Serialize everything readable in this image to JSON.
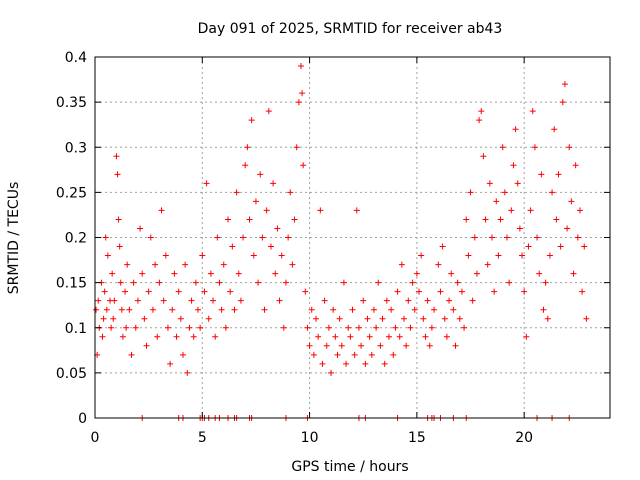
{
  "chart_data": {
    "type": "scatter",
    "title": "Day 091 of 2025, SRMTID for receiver ab43",
    "xlabel": "GPS time / hours",
    "ylabel": "SRMTID / TECUs",
    "xlim": [
      0,
      24
    ],
    "ylim": [
      0,
      0.4
    ],
    "xticks": [
      0,
      5,
      10,
      15,
      20
    ],
    "xtick_labels": [
      "0",
      "5",
      "10",
      "15",
      "20"
    ],
    "yticks": [
      0,
      0.05,
      0.1,
      0.15,
      0.2,
      0.25,
      0.3,
      0.35,
      0.4
    ],
    "ytick_labels": [
      "0",
      "0.05",
      "0.1",
      "0.15",
      "0.2",
      "0.25",
      "0.3",
      "0.35",
      "0.4"
    ],
    "grid": true,
    "marker": "+",
    "color": "#ff0000",
    "series": [
      {
        "name": "SRMTID",
        "points": [
          [
            0.05,
            0.12
          ],
          [
            0.1,
            0.07
          ],
          [
            0.15,
            0.13
          ],
          [
            0.2,
            0.1
          ],
          [
            0.3,
            0.15
          ],
          [
            0.35,
            0.09
          ],
          [
            0.4,
            0.11
          ],
          [
            0.45,
            0.14
          ],
          [
            0.5,
            0.2
          ],
          [
            0.55,
            0.12
          ],
          [
            0.6,
            0.18
          ],
          [
            0.7,
            0.13
          ],
          [
            0.75,
            0.1
          ],
          [
            0.8,
            0.16
          ],
          [
            0.85,
            0.11
          ],
          [
            0.9,
            0.13
          ],
          [
            1.0,
            0.29
          ],
          [
            1.05,
            0.27
          ],
          [
            1.1,
            0.22
          ],
          [
            1.15,
            0.19
          ],
          [
            1.2,
            0.15
          ],
          [
            1.25,
            0.12
          ],
          [
            1.3,
            0.09
          ],
          [
            1.4,
            0.14
          ],
          [
            1.45,
            0.1
          ],
          [
            1.5,
            0.17
          ],
          [
            1.6,
            0.12
          ],
          [
            1.7,
            0.07
          ],
          [
            1.8,
            0.15
          ],
          [
            1.9,
            0.1
          ],
          [
            2.0,
            0.13
          ],
          [
            2.1,
            0.21
          ],
          [
            2.2,
            0.16
          ],
          [
            2.3,
            0.11
          ],
          [
            2.4,
            0.08
          ],
          [
            2.5,
            0.14
          ],
          [
            2.6,
            0.2
          ],
          [
            2.7,
            0.12
          ],
          [
            2.8,
            0.17
          ],
          [
            2.9,
            0.09
          ],
          [
            3.0,
            0.15
          ],
          [
            3.1,
            0.23
          ],
          [
            3.2,
            0.13
          ],
          [
            3.3,
            0.18
          ],
          [
            3.4,
            0.1
          ],
          [
            3.5,
            0.06
          ],
          [
            3.6,
            0.12
          ],
          [
            3.7,
            0.16
          ],
          [
            3.8,
            0.09
          ],
          [
            3.9,
            0.14
          ],
          [
            4.0,
            0.11
          ],
          [
            4.1,
            0.07
          ],
          [
            4.2,
            0.17
          ],
          [
            4.3,
            0.05
          ],
          [
            4.4,
            0.1
          ],
          [
            4.5,
            0.13
          ],
          [
            4.6,
            0.09
          ],
          [
            4.7,
            0.15
          ],
          [
            4.8,
            0.12
          ],
          [
            4.9,
            0.1
          ],
          [
            5.0,
            0.18
          ],
          [
            5.1,
            0.14
          ],
          [
            5.2,
            0.26
          ],
          [
            5.3,
            0.11
          ],
          [
            5.4,
            0.16
          ],
          [
            5.5,
            0.13
          ],
          [
            5.6,
            0.09
          ],
          [
            5.7,
            0.2
          ],
          [
            5.8,
            0.15
          ],
          [
            5.9,
            0.12
          ],
          [
            6.0,
            0.17
          ],
          [
            6.1,
            0.1
          ],
          [
            6.2,
            0.22
          ],
          [
            6.3,
            0.14
          ],
          [
            6.4,
            0.19
          ],
          [
            6.5,
            0.12
          ],
          [
            6.6,
            0.25
          ],
          [
            6.7,
            0.16
          ],
          [
            6.8,
            0.13
          ],
          [
            6.9,
            0.2
          ],
          [
            7.0,
            0.28
          ],
          [
            7.1,
            0.3
          ],
          [
            7.2,
            0.22
          ],
          [
            7.3,
            0.33
          ],
          [
            7.4,
            0.18
          ],
          [
            7.5,
            0.24
          ],
          [
            7.6,
            0.15
          ],
          [
            7.7,
            0.27
          ],
          [
            7.8,
            0.2
          ],
          [
            7.9,
            0.12
          ],
          [
            8.0,
            0.23
          ],
          [
            8.1,
            0.34
          ],
          [
            8.2,
            0.19
          ],
          [
            8.3,
            0.26
          ],
          [
            8.4,
            0.16
          ],
          [
            8.5,
            0.21
          ],
          [
            8.6,
            0.13
          ],
          [
            8.7,
            0.18
          ],
          [
            8.8,
            0.1
          ],
          [
            8.9,
            0.15
          ],
          [
            9.0,
            0.2
          ],
          [
            9.1,
            0.25
          ],
          [
            9.2,
            0.17
          ],
          [
            9.3,
            0.22
          ],
          [
            9.4,
            0.3
          ],
          [
            9.5,
            0.35
          ],
          [
            9.6,
            0.39
          ],
          [
            9.65,
            0.36
          ],
          [
            9.7,
            0.28
          ],
          [
            9.8,
            0.14
          ],
          [
            9.9,
            0.1
          ],
          [
            10.0,
            0.08
          ],
          [
            10.1,
            0.12
          ],
          [
            10.2,
            0.07
          ],
          [
            10.3,
            0.11
          ],
          [
            10.4,
            0.09
          ],
          [
            10.5,
            0.23
          ],
          [
            10.6,
            0.06
          ],
          [
            10.7,
            0.13
          ],
          [
            10.8,
            0.08
          ],
          [
            10.9,
            0.1
          ],
          [
            11.0,
            0.05
          ],
          [
            11.1,
            0.12
          ],
          [
            11.2,
            0.09
          ],
          [
            11.3,
            0.07
          ],
          [
            11.4,
            0.11
          ],
          [
            11.5,
            0.08
          ],
          [
            11.6,
            0.15
          ],
          [
            11.7,
            0.06
          ],
          [
            11.8,
            0.1
          ],
          [
            11.9,
            0.09
          ],
          [
            12.0,
            0.12
          ],
          [
            12.1,
            0.07
          ],
          [
            12.2,
            0.23
          ],
          [
            12.3,
            0.1
          ],
          [
            12.4,
            0.08
          ],
          [
            12.5,
            0.13
          ],
          [
            12.6,
            0.06
          ],
          [
            12.7,
            0.11
          ],
          [
            12.8,
            0.09
          ],
          [
            12.9,
            0.07
          ],
          [
            13.0,
            0.12
          ],
          [
            13.1,
            0.1
          ],
          [
            13.2,
            0.15
          ],
          [
            13.3,
            0.08
          ],
          [
            13.4,
            0.11
          ],
          [
            13.5,
            0.06
          ],
          [
            13.6,
            0.13
          ],
          [
            13.7,
            0.09
          ],
          [
            13.8,
            0.12
          ],
          [
            13.9,
            0.07
          ],
          [
            14.0,
            0.1
          ],
          [
            14.1,
            0.14
          ],
          [
            14.2,
            0.09
          ],
          [
            14.3,
            0.17
          ],
          [
            14.4,
            0.11
          ],
          [
            14.5,
            0.08
          ],
          [
            14.6,
            0.13
          ],
          [
            14.7,
            0.1
          ],
          [
            14.8,
            0.15
          ],
          [
            14.9,
            0.12
          ],
          [
            15.0,
            0.16
          ],
          [
            15.1,
            0.14
          ],
          [
            15.2,
            0.18
          ],
          [
            15.3,
            0.11
          ],
          [
            15.4,
            0.09
          ],
          [
            15.5,
            0.13
          ],
          [
            15.6,
            0.08
          ],
          [
            15.7,
            0.1
          ],
          [
            15.8,
            0.12
          ],
          [
            16.0,
            0.17
          ],
          [
            16.1,
            0.14
          ],
          [
            16.2,
            0.19
          ],
          [
            16.3,
            0.11
          ],
          [
            16.4,
            0.09
          ],
          [
            16.5,
            0.13
          ],
          [
            16.6,
            0.16
          ],
          [
            16.7,
            0.12
          ],
          [
            16.8,
            0.08
          ],
          [
            16.9,
            0.15
          ],
          [
            17.0,
            0.11
          ],
          [
            17.1,
            0.14
          ],
          [
            17.2,
            0.1
          ],
          [
            17.3,
            0.22
          ],
          [
            17.4,
            0.18
          ],
          [
            17.5,
            0.25
          ],
          [
            17.6,
            0.13
          ],
          [
            17.7,
            0.2
          ],
          [
            17.8,
            0.16
          ],
          [
            17.9,
            0.33
          ],
          [
            18.0,
            0.34
          ],
          [
            18.1,
            0.29
          ],
          [
            18.2,
            0.22
          ],
          [
            18.3,
            0.17
          ],
          [
            18.4,
            0.26
          ],
          [
            18.5,
            0.2
          ],
          [
            18.6,
            0.14
          ],
          [
            18.7,
            0.24
          ],
          [
            18.8,
            0.18
          ],
          [
            18.9,
            0.22
          ],
          [
            19.0,
            0.3
          ],
          [
            19.1,
            0.25
          ],
          [
            19.2,
            0.2
          ],
          [
            19.3,
            0.15
          ],
          [
            19.4,
            0.23
          ],
          [
            19.5,
            0.28
          ],
          [
            19.6,
            0.32
          ],
          [
            19.7,
            0.26
          ],
          [
            19.8,
            0.21
          ],
          [
            19.9,
            0.18
          ],
          [
            20.0,
            0.14
          ],
          [
            20.1,
            0.09
          ],
          [
            20.2,
            0.19
          ],
          [
            20.3,
            0.23
          ],
          [
            20.4,
            0.34
          ],
          [
            20.5,
            0.3
          ],
          [
            20.6,
            0.2
          ],
          [
            20.7,
            0.16
          ],
          [
            20.8,
            0.27
          ],
          [
            20.9,
            0.12
          ],
          [
            21.0,
            0.15
          ],
          [
            21.1,
            0.11
          ],
          [
            21.2,
            0.18
          ],
          [
            21.3,
            0.25
          ],
          [
            21.4,
            0.32
          ],
          [
            21.5,
            0.22
          ],
          [
            21.6,
            0.27
          ],
          [
            21.7,
            0.19
          ],
          [
            21.8,
            0.35
          ],
          [
            21.9,
            0.37
          ],
          [
            22.0,
            0.21
          ],
          [
            22.1,
            0.3
          ],
          [
            22.2,
            0.24
          ],
          [
            22.3,
            0.16
          ],
          [
            22.4,
            0.28
          ],
          [
            22.5,
            0.2
          ],
          [
            22.6,
            0.23
          ],
          [
            22.7,
            0.14
          ],
          [
            22.8,
            0.19
          ],
          [
            22.9,
            0.11
          ]
        ],
        "zero_values_x": [
          2.2,
          3.9,
          4.1,
          4.9,
          5.0,
          5.1,
          5.3,
          5.6,
          5.8,
          6.2,
          6.5,
          6.6,
          7.2,
          7.3,
          8.9,
          9.9,
          12.3,
          12.6,
          14.1,
          15.5,
          15.7,
          15.8,
          16.1,
          16.7,
          17.3,
          20.6,
          21.3,
          22.1
        ]
      }
    ]
  }
}
